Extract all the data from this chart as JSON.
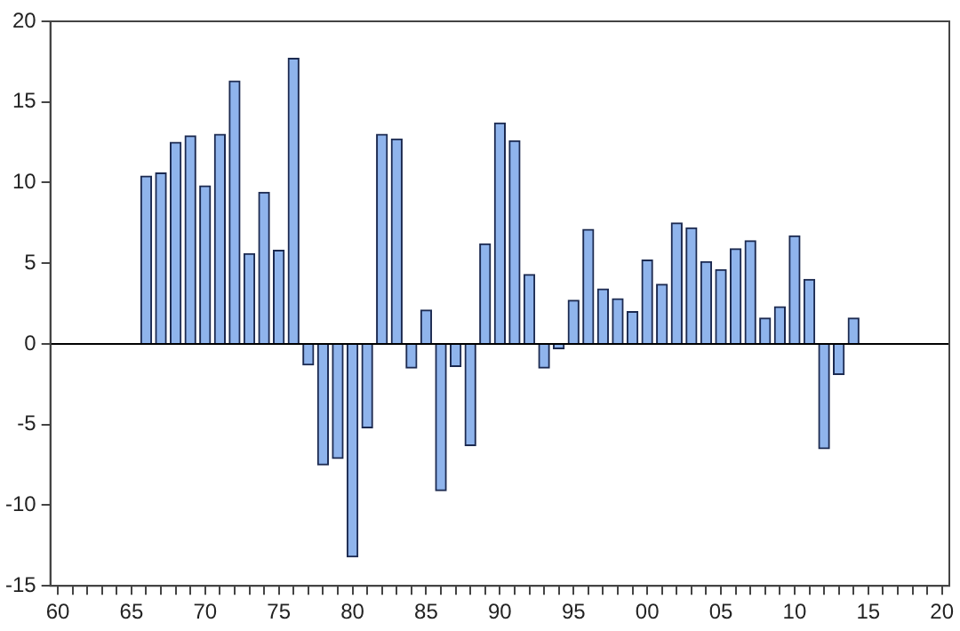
{
  "chart_data": {
    "type": "bar",
    "categories": [
      "60",
      null,
      null,
      null,
      null,
      "65",
      null,
      null,
      null,
      null,
      "70",
      null,
      null,
      null,
      null,
      "75",
      null,
      null,
      null,
      null,
      "80",
      null,
      null,
      null,
      null,
      "85",
      null,
      null,
      null,
      null,
      "90",
      null,
      null,
      null,
      null,
      "95",
      null,
      null,
      null,
      null,
      "00",
      null,
      null,
      null,
      null,
      "05",
      null,
      null,
      null,
      null,
      "10",
      null,
      null,
      null,
      null,
      "15",
      null,
      null,
      null,
      null,
      "20"
    ],
    "values": [
      null,
      null,
      null,
      null,
      null,
      null,
      10.4,
      10.6,
      12.5,
      12.9,
      9.8,
      13.0,
      16.3,
      5.6,
      9.4,
      5.8,
      17.7,
      -1.3,
      -7.5,
      -7.1,
      -13.2,
      -5.2,
      13.0,
      12.7,
      -1.5,
      2.1,
      -9.1,
      -1.4,
      -6.3,
      6.2,
      13.7,
      12.6,
      4.3,
      -1.5,
      -0.3,
      2.7,
      7.1,
      3.4,
      2.8,
      2.0,
      5.2,
      3.7,
      7.5,
      7.2,
      5.1,
      4.6,
      5.9,
      6.4,
      1.6,
      2.3,
      6.7,
      4.0,
      -6.5,
      -1.9,
      1.6,
      null,
      null,
      null,
      null,
      null,
      null
    ],
    "color": "#8fb4ec",
    "ylim": [
      -15,
      20
    ],
    "yticks": [
      -15,
      -10,
      -5,
      0,
      5,
      10,
      15,
      20
    ],
    "grid": false,
    "legend": false,
    "ref_lines": [
      {
        "axis": "y",
        "value": 0,
        "color": "#000000"
      }
    ]
  }
}
